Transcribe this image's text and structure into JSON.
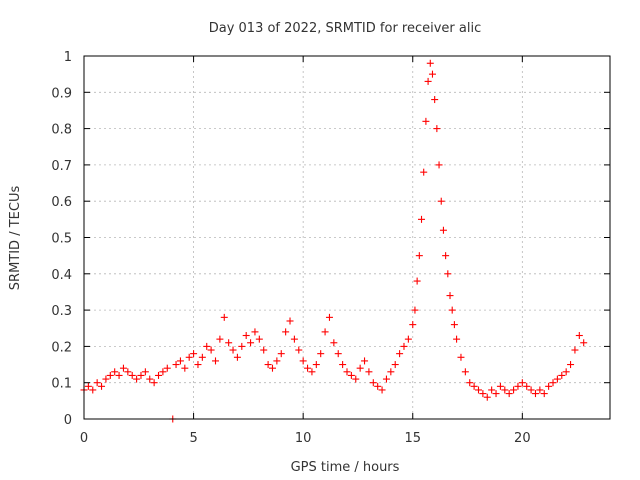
{
  "chart_data": {
    "type": "scatter",
    "title": "Day 013 of 2022, SRMTID for receiver alic",
    "xlabel": "GPS time / hours",
    "ylabel": "SRMTID / TECUs",
    "xlim": [
      0,
      24
    ],
    "ylim": [
      0,
      1
    ],
    "x_ticks": [
      0,
      5,
      10,
      15,
      20
    ],
    "x_tick_labels": [
      "0",
      "5",
      "10",
      "15",
      "20"
    ],
    "y_ticks": [
      0,
      0.1,
      0.2,
      0.3,
      0.4,
      0.5,
      0.6,
      0.7,
      0.8,
      0.9,
      1
    ],
    "y_tick_labels": [
      "0",
      "0.1",
      "0.2",
      "0.3",
      "0.4",
      "0.5",
      "0.6",
      "0.7",
      "0.8",
      "0.9",
      "1"
    ],
    "grid": true,
    "legend": "none",
    "marker": "plus",
    "series_color": "#ff0000",
    "series": [
      {
        "name": "SRMTID",
        "x": [
          0.0,
          0.2,
          0.4,
          0.6,
          0.8,
          1.0,
          1.2,
          1.4,
          1.6,
          1.8,
          2.0,
          2.2,
          2.4,
          2.6,
          2.8,
          3.0,
          3.2,
          3.4,
          3.6,
          3.8,
          4.2,
          4.4,
          4.6,
          4.8,
          5.0,
          5.2,
          5.4,
          5.6,
          5.8,
          6.0,
          6.2,
          6.4,
          6.6,
          6.8,
          7.0,
          7.2,
          7.4,
          7.6,
          7.8,
          8.0,
          8.2,
          8.4,
          8.6,
          8.8,
          9.0,
          9.2,
          9.4,
          9.6,
          9.8,
          10.0,
          10.2,
          10.4,
          10.6,
          10.8,
          11.0,
          11.2,
          11.4,
          11.6,
          11.8,
          12.0,
          12.2,
          12.4,
          12.6,
          12.8,
          13.0,
          13.2,
          13.4,
          13.6,
          13.8,
          14.0,
          14.2,
          14.4,
          14.6,
          14.8,
          15.0,
          15.1,
          15.2,
          15.3,
          15.4,
          15.5,
          15.6,
          15.7,
          15.8,
          15.9,
          16.0,
          16.1,
          16.2,
          16.3,
          16.4,
          16.5,
          16.6,
          16.7,
          16.8,
          16.9,
          17.0,
          17.2,
          17.4,
          17.6,
          17.8,
          18.0,
          18.2,
          18.4,
          18.6,
          18.8,
          19.0,
          19.2,
          19.4,
          19.6,
          19.8,
          20.0,
          20.2,
          20.4,
          20.6,
          20.8,
          21.0,
          21.2,
          21.4,
          21.6,
          21.8,
          22.0,
          22.2,
          22.4,
          22.6,
          22.8,
          4.05
        ],
        "y": [
          0.08,
          0.09,
          0.08,
          0.1,
          0.09,
          0.11,
          0.12,
          0.13,
          0.12,
          0.14,
          0.13,
          0.12,
          0.11,
          0.12,
          0.13,
          0.11,
          0.1,
          0.12,
          0.13,
          0.14,
          0.15,
          0.16,
          0.14,
          0.17,
          0.18,
          0.15,
          0.17,
          0.2,
          0.19,
          0.16,
          0.22,
          0.28,
          0.21,
          0.19,
          0.17,
          0.2,
          0.23,
          0.21,
          0.24,
          0.22,
          0.19,
          0.15,
          0.14,
          0.16,
          0.18,
          0.24,
          0.27,
          0.22,
          0.19,
          0.16,
          0.14,
          0.13,
          0.15,
          0.18,
          0.24,
          0.28,
          0.21,
          0.18,
          0.15,
          0.13,
          0.12,
          0.11,
          0.14,
          0.16,
          0.13,
          0.1,
          0.09,
          0.08,
          0.11,
          0.13,
          0.15,
          0.18,
          0.2,
          0.22,
          0.26,
          0.3,
          0.38,
          0.45,
          0.55,
          0.68,
          0.82,
          0.93,
          0.98,
          0.95,
          0.88,
          0.8,
          0.7,
          0.6,
          0.52,
          0.45,
          0.4,
          0.34,
          0.3,
          0.26,
          0.22,
          0.17,
          0.13,
          0.1,
          0.09,
          0.08,
          0.07,
          0.06,
          0.08,
          0.07,
          0.09,
          0.08,
          0.07,
          0.08,
          0.09,
          0.1,
          0.09,
          0.08,
          0.07,
          0.08,
          0.07,
          0.09,
          0.1,
          0.11,
          0.12,
          0.13,
          0.15,
          0.19,
          0.23,
          0.21,
          0.0
        ]
      }
    ]
  }
}
